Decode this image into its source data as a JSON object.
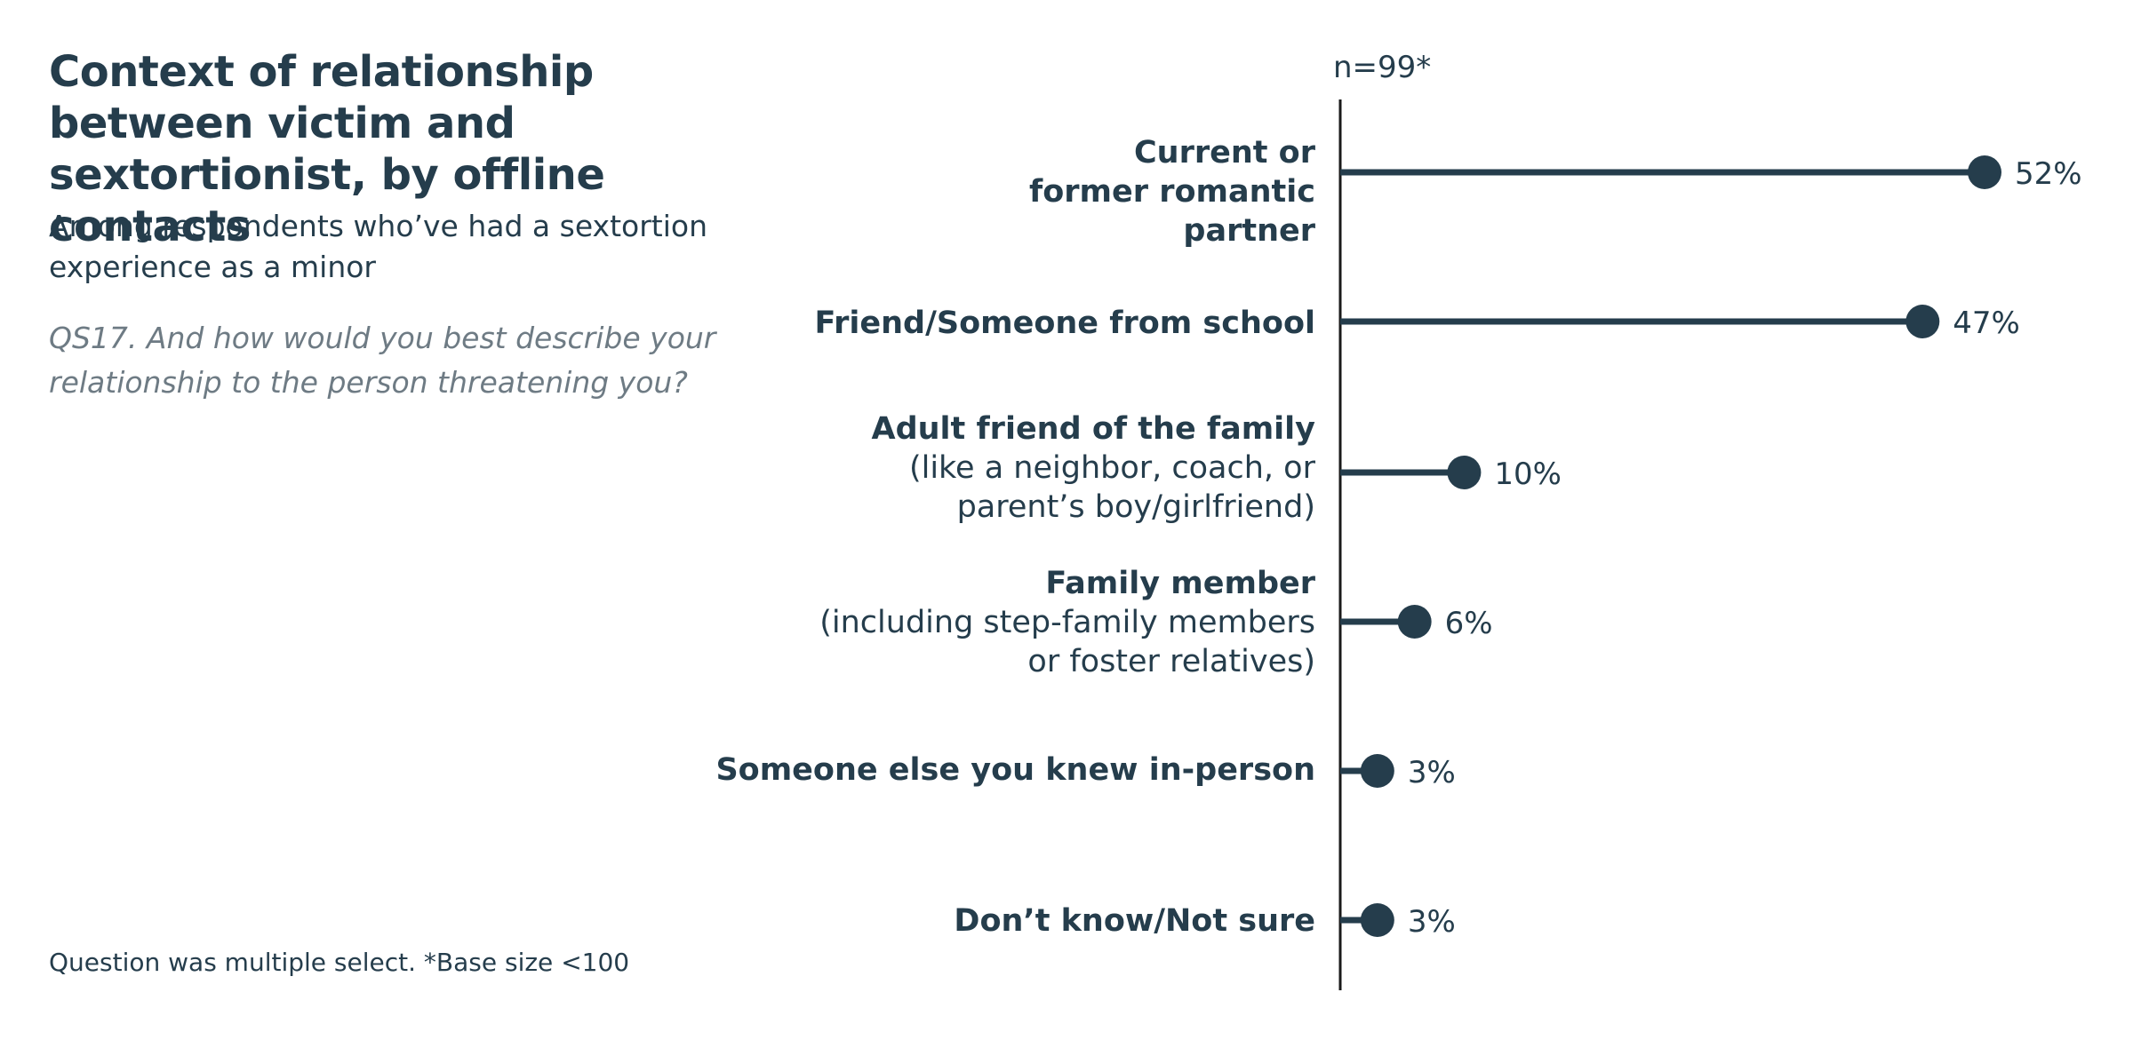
{
  "title": "Context of relationship between victim and sextortionist, by offline contacts",
  "subtitle": "Among respondents who’ve had a sextortion experience as a minor",
  "question": "QS17. And how would you best describe your relationship to the person threatening you?",
  "footnote": "Question was multiple select. *Base size <100",
  "base_label": "n=99*",
  "colors": {
    "mark": "#253d4c",
    "axis": "#1a1a1a",
    "text": "#253d4c",
    "question": "#6e7b84"
  },
  "chart_data": {
    "type": "lollipop",
    "categories": [
      {
        "main": "Current or former romantic partner",
        "sub": ""
      },
      {
        "main": "Friend/Someone from school",
        "sub": ""
      },
      {
        "main": "Adult friend of the family",
        "sub": "(like a neighbor, coach, or parent’s boy/girlfriend)"
      },
      {
        "main": "Family member",
        "sub": "(including step-family members or foster relatives)"
      },
      {
        "main": "Someone else you knew in-person",
        "sub": ""
      },
      {
        "main": "Don’t know/Not sure",
        "sub": ""
      }
    ],
    "values": [
      52,
      47,
      10,
      6,
      3,
      3
    ],
    "value_labels": [
      "52%",
      "47%",
      "10%",
      "6%",
      "3%",
      "3%"
    ],
    "unit": "%",
    "xlim": [
      0,
      55
    ]
  }
}
